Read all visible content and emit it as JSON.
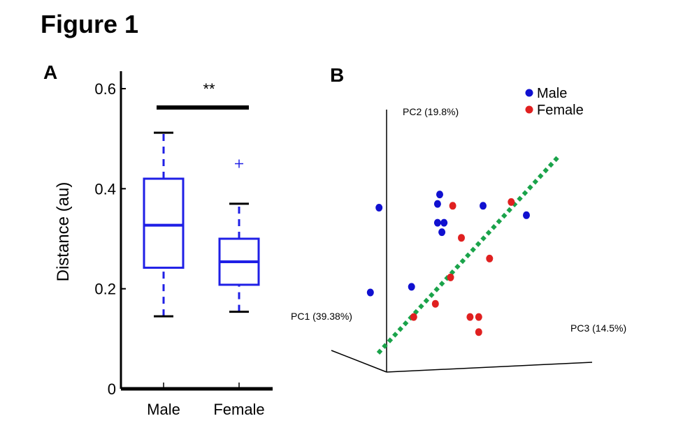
{
  "figure_title": "Figure 1",
  "chart_data": [
    {
      "panel": "A",
      "type": "box",
      "ylabel": "Distance (au)",
      "ylim": [
        0,
        0.6
      ],
      "yticks": [
        "0",
        "0.2",
        "0.4",
        "0.6"
      ],
      "ytick_values": [
        0,
        0.2,
        0.4,
        0.6
      ],
      "categories": [
        "Male",
        "Female"
      ],
      "boxes": [
        {
          "name": "Male",
          "whisker_low": 0.145,
          "q1": 0.242,
          "median": 0.327,
          "q3": 0.42,
          "whisker_high": 0.512,
          "outliers": []
        },
        {
          "name": "Female",
          "whisker_low": 0.154,
          "q1": 0.208,
          "median": 0.254,
          "q3": 0.3,
          "whisker_high": 0.37,
          "outliers": [
            0.45
          ]
        }
      ],
      "significance": {
        "label": "**",
        "between": [
          "Male",
          "Female"
        ]
      },
      "colors": {
        "box": "#1f1fe6",
        "whisker_cap": "#000000"
      }
    },
    {
      "panel": "B",
      "type": "scatter",
      "axes": {
        "pc1": "PC1 (39.38%)",
        "pc2": "PC2 (19.8%)",
        "pc3": "PC3 (14.5%)"
      },
      "legend": [
        {
          "name": "Male",
          "color": "#1010d0"
        },
        {
          "name": "Female",
          "color": "#e02020"
        }
      ],
      "separator_color": "#1aa34a",
      "series": [
        {
          "name": "Male",
          "color": "#1010d0",
          "points": [
            [
              0.12,
              0.75
            ],
            [
              0.08,
              0.3
            ],
            [
              0.27,
              0.33
            ],
            [
              0.4,
              0.82
            ],
            [
              0.39,
              0.77
            ],
            [
              0.39,
              0.67
            ],
            [
              0.42,
              0.67
            ],
            [
              0.41,
              0.62
            ],
            [
              0.6,
              0.76
            ],
            [
              0.8,
              0.71
            ]
          ]
        },
        {
          "name": "Female",
          "color": "#e02020",
          "points": [
            [
              0.46,
              0.76
            ],
            [
              0.5,
              0.59
            ],
            [
              0.73,
              0.78
            ],
            [
              0.63,
              0.48
            ],
            [
              0.45,
              0.38
            ],
            [
              0.38,
              0.24
            ],
            [
              0.28,
              0.17
            ],
            [
              0.54,
              0.17
            ],
            [
              0.58,
              0.17
            ],
            [
              0.58,
              0.09
            ]
          ]
        }
      ]
    }
  ]
}
